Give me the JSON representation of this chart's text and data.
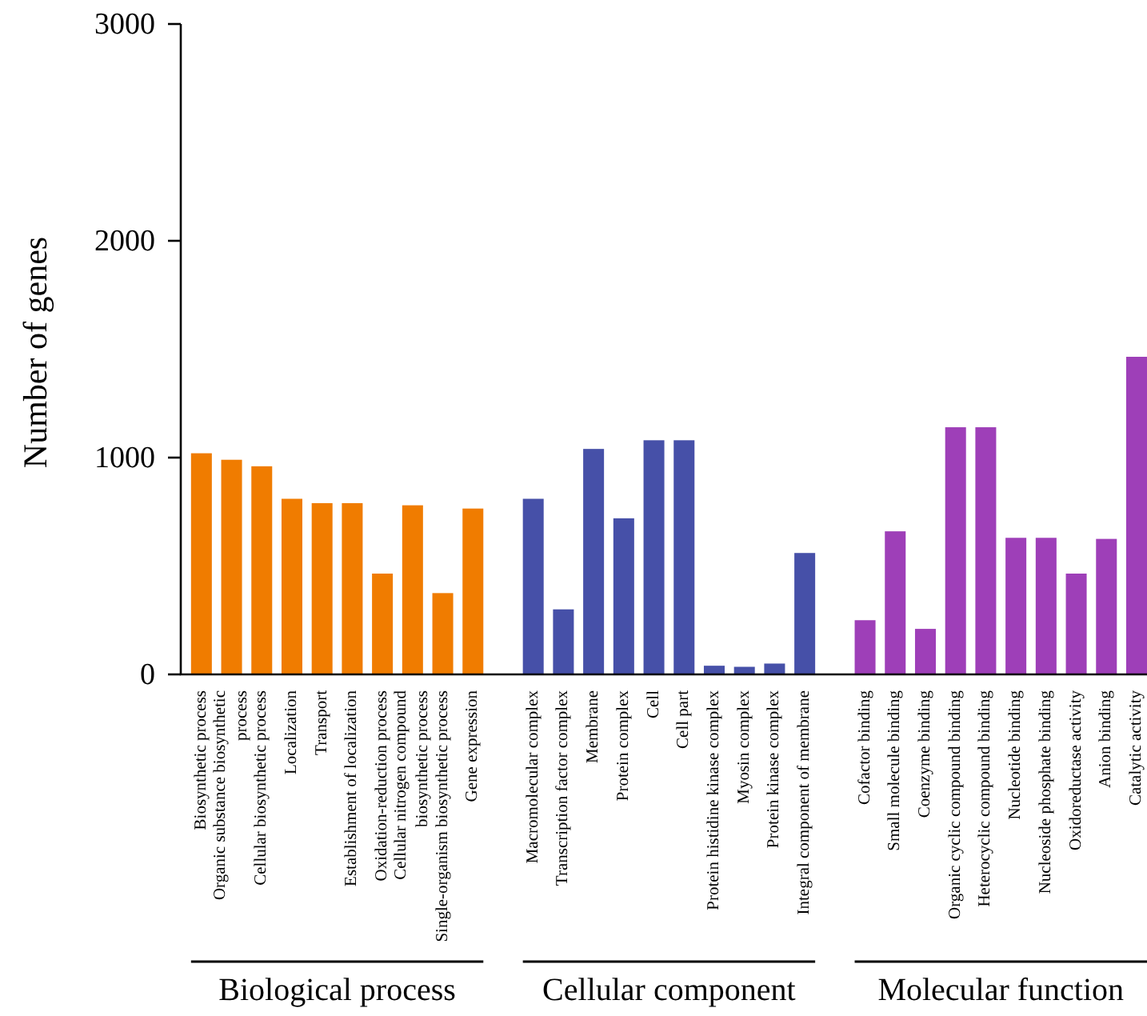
{
  "chart_data": {
    "type": "bar",
    "ylabel": "Number of genes",
    "categories": [
      "Biosynthetic process",
      "Organic substance biosynthetic\nprocess",
      "Cellular biosynthetic process",
      "Localization",
      "Transport",
      "Establishment of localization",
      "Oxidation-reduction process",
      "Cellular nitrogen compound\nbiosynthetic process",
      "Single-organism biosynthetic process",
      "Gene expression",
      "Macromolecular complex",
      "Transcription factor complex",
      "Membrane",
      "Protein complex",
      "Cell",
      "Cell part",
      "Protein histidine kinase complex",
      "Myosin complex",
      "Protein kinase complex",
      "Integral component of membrane",
      "Cofactor binding",
      "Small molecule binding",
      "Coenzyme binding",
      "Organic cyclic compound binding",
      "Heterocyclic compound binding",
      "Nucleotide binding",
      "Nucleoside phosphate binding",
      "Oxidoreductase activity",
      "Anion binding",
      "Catalytic activity"
    ],
    "values": [
      1020,
      990,
      960,
      810,
      790,
      790,
      465,
      780,
      375,
      765,
      810,
      300,
      1040,
      720,
      1080,
      1080,
      40,
      35,
      50,
      560,
      250,
      660,
      210,
      1140,
      1140,
      630,
      630,
      465,
      625,
      1465
    ],
    "colors": [
      "#f07c00",
      "#f07c00",
      "#f07c00",
      "#f07c00",
      "#f07c00",
      "#f07c00",
      "#f07c00",
      "#f07c00",
      "#f07c00",
      "#f07c00",
      "#4650a8",
      "#4650a8",
      "#4650a8",
      "#4650a8",
      "#4650a8",
      "#4650a8",
      "#4650a8",
      "#4650a8",
      "#4650a8",
      "#4650a8",
      "#9e3fb8",
      "#9e3fb8",
      "#9e3fb8",
      "#9e3fb8",
      "#9e3fb8",
      "#9e3fb8",
      "#9e3fb8",
      "#9e3fb8",
      "#9e3fb8",
      "#9e3fb8"
    ],
    "annotations": [
      "Biological process",
      "Cellular component",
      "Molecular function"
    ],
    "ylim": [
      0,
      3000
    ],
    "yticks": [
      0,
      1000,
      2000,
      3000
    ]
  }
}
